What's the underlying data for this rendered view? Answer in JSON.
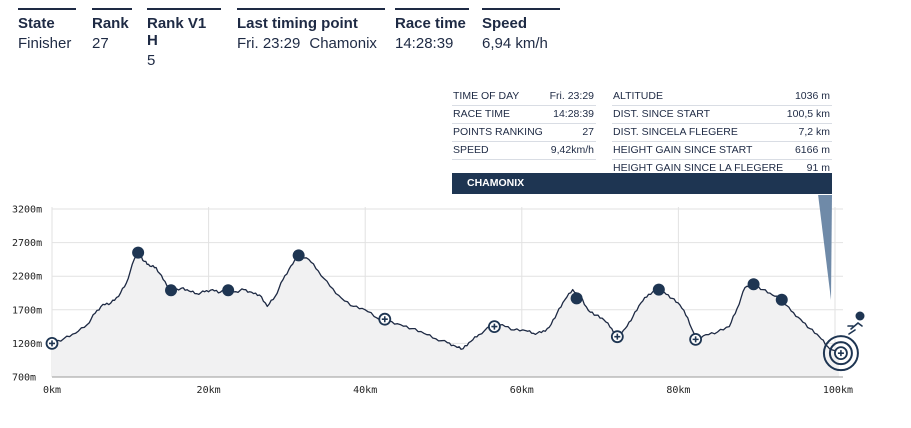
{
  "header": {
    "state": {
      "label": "State",
      "value": "Finisher"
    },
    "rank": {
      "label": "Rank",
      "value": "27"
    },
    "rank_v1h": {
      "label": "Rank V1 H",
      "value": "5"
    },
    "last_timing_point": {
      "label": "Last timing point",
      "value_time": "Fri. 23:29",
      "value_place": "Chamonix"
    },
    "race_time": {
      "label": "Race time",
      "value": "14:28:39"
    },
    "speed": {
      "label": "Speed",
      "value": "6,94 km/h"
    }
  },
  "info": {
    "left": [
      {
        "key": "TIME OF DAY",
        "value": "Fri. 23:29"
      },
      {
        "key": "RACE TIME",
        "value": "14:28:39"
      },
      {
        "key": "POINTS RANKING",
        "value": "27"
      },
      {
        "key": "SPEED",
        "value": "9,42km/h"
      }
    ],
    "right": [
      {
        "key": "ALTITUDE",
        "value": "1036 m"
      },
      {
        "key": "DIST. SINCE START",
        "value": "100,5 km"
      },
      {
        "key": "DIST. SINCELA FLEGERE",
        "value": "7,2 km"
      },
      {
        "key": "HEIGHT GAIN SINCE START",
        "value": "6166 m"
      },
      {
        "key": "HEIGHT GAIN SINCE LA FLEGERE",
        "value": "91 m"
      }
    ],
    "banner": "CHAMONIX"
  },
  "chart_data": {
    "type": "area",
    "xlabel": "",
    "ylabel": "",
    "xlim": [
      0,
      100
    ],
    "ylim": [
      700,
      3200
    ],
    "x_ticks": [
      "0km",
      "20km",
      "40km",
      "60km",
      "80km",
      "100km"
    ],
    "y_ticks": [
      "3200m",
      "2700m",
      "2200m",
      "1700m",
      "1200m",
      "700m"
    ],
    "grid": true,
    "colors": {
      "line": "#1e2a44",
      "fill": "#f1f1f2",
      "marker": "#1e3552",
      "grid": "#e2e2e2"
    },
    "profile": [
      [
        0,
        1200
      ],
      [
        1.5,
        1270
      ],
      [
        3,
        1350
      ],
      [
        4.5,
        1480
      ],
      [
        5.5,
        1650
      ],
      [
        6.5,
        1780
      ],
      [
        7.5,
        1800
      ],
      [
        8.5,
        1900
      ],
      [
        9.5,
        2100
      ],
      [
        10.5,
        2450
      ],
      [
        11,
        2550
      ],
      [
        11.8,
        2420
      ],
      [
        12.5,
        2350
      ],
      [
        13.3,
        2330
      ],
      [
        14.2,
        2150
      ],
      [
        15.2,
        1990
      ],
      [
        16.5,
        2020
      ],
      [
        17.5,
        1980
      ],
      [
        18.5,
        1940
      ],
      [
        19.5,
        1970
      ],
      [
        20.5,
        2000
      ],
      [
        21.5,
        1960
      ],
      [
        22.5,
        1990
      ],
      [
        23.5,
        1970
      ],
      [
        24.5,
        2000
      ],
      [
        25.5,
        1960
      ],
      [
        26.5,
        1920
      ],
      [
        27.5,
        1750
      ],
      [
        28.5,
        1900
      ],
      [
        29.5,
        2150
      ],
      [
        30.5,
        2350
      ],
      [
        31.5,
        2510
      ],
      [
        32.8,
        2450
      ],
      [
        34,
        2280
      ],
      [
        35.5,
        2050
      ],
      [
        37,
        1870
      ],
      [
        38.5,
        1750
      ],
      [
        40,
        1700
      ],
      [
        41.5,
        1580
      ],
      [
        43,
        1530
      ],
      [
        44.5,
        1480
      ],
      [
        46,
        1420
      ],
      [
        47.5,
        1350
      ],
      [
        49,
        1270
      ],
      [
        50.5,
        1210
      ],
      [
        51.5,
        1160
      ],
      [
        52.5,
        1120
      ],
      [
        53.5,
        1230
      ],
      [
        54.5,
        1330
      ],
      [
        56,
        1450
      ],
      [
        57.5,
        1480
      ],
      [
        59,
        1400
      ],
      [
        60.5,
        1390
      ],
      [
        61.5,
        1350
      ],
      [
        62.5,
        1360
      ],
      [
        63.5,
        1440
      ],
      [
        64.5,
        1650
      ],
      [
        65.5,
        1850
      ],
      [
        66.5,
        2000
      ],
      [
        67.5,
        1900
      ],
      [
        68.5,
        1690
      ],
      [
        69.5,
        1620
      ],
      [
        70.5,
        1550
      ],
      [
        71.5,
        1420
      ],
      [
        72.2,
        1300
      ],
      [
        73.2,
        1420
      ],
      [
        74.2,
        1600
      ],
      [
        75.2,
        1800
      ],
      [
        76.2,
        1930
      ],
      [
        77.2,
        2000
      ],
      [
        78.2,
        1960
      ],
      [
        79.2,
        1870
      ],
      [
        80.2,
        1770
      ],
      [
        81.2,
        1580
      ],
      [
        82.2,
        1260
      ],
      [
        83.5,
        1330
      ],
      [
        85,
        1370
      ],
      [
        86.5,
        1450
      ],
      [
        87.5,
        1720
      ],
      [
        88.5,
        2030
      ],
      [
        89.6,
        2080
      ],
      [
        90.8,
        2000
      ],
      [
        92,
        1920
      ],
      [
        93.2,
        1850
      ],
      [
        94.4,
        1680
      ],
      [
        95.6,
        1560
      ],
      [
        96.8,
        1420
      ],
      [
        98,
        1300
      ],
      [
        99,
        1160
      ],
      [
        100.5,
        1040
      ]
    ],
    "checkpoints": [
      {
        "x": 0,
        "y": 1200,
        "marker": "plus"
      },
      {
        "x": 11,
        "y": 2550,
        "marker": "dot"
      },
      {
        "x": 15.2,
        "y": 1990,
        "marker": "dot"
      },
      {
        "x": 22.5,
        "y": 1990,
        "marker": "dot"
      },
      {
        "x": 31.5,
        "y": 2510,
        "marker": "dot"
      },
      {
        "x": 42.5,
        "y": 1560,
        "marker": "plus"
      },
      {
        "x": 56.5,
        "y": 1450,
        "marker": "plus"
      },
      {
        "x": 67,
        "y": 1870,
        "marker": "dot"
      },
      {
        "x": 72.2,
        "y": 1300,
        "marker": "plus"
      },
      {
        "x": 77.5,
        "y": 2000,
        "marker": "dot"
      },
      {
        "x": 82.2,
        "y": 1260,
        "marker": "plus"
      },
      {
        "x": 89.6,
        "y": 2080,
        "marker": "dot"
      },
      {
        "x": 93.2,
        "y": 1850,
        "marker": "dot"
      },
      {
        "x": 100.5,
        "y": 1040,
        "marker": "finish"
      }
    ]
  }
}
